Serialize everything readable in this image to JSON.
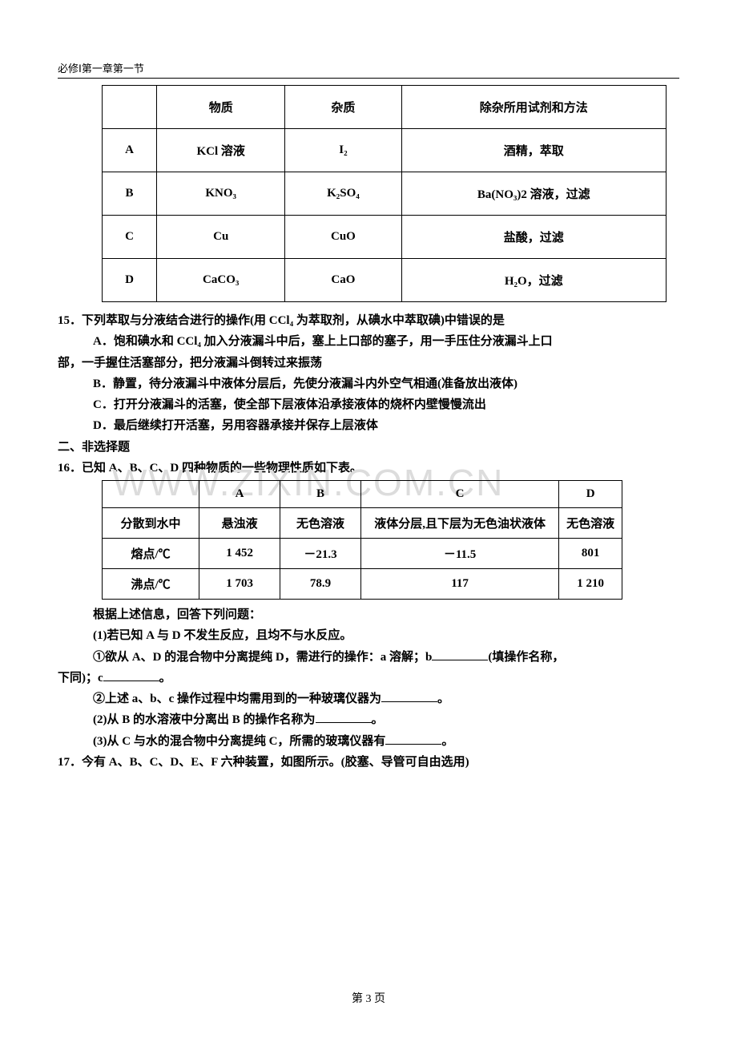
{
  "header": "必修Ⅰ第一章第一节",
  "table1": {
    "headers": [
      "",
      "物质",
      "杂质",
      "除杂所用试剂和方法"
    ],
    "rows": [
      [
        "A",
        "KCl 溶液",
        "I₂",
        "酒精，萃取"
      ],
      [
        "B",
        "KNO₃",
        "K₂SO₄",
        "Ba(NO₃)2 溶液，过滤"
      ],
      [
        "C",
        "Cu",
        "CuO",
        "盐酸，过滤"
      ],
      [
        "D",
        "CaCO₃",
        "CaO",
        "H₂O，过滤"
      ]
    ]
  },
  "q15": {
    "num": "15．",
    "stem": "下列萃取与分液结合进行的操作(用 CCl₄ 为萃取剂，从碘水中萃取碘)中错误的是",
    "optA": "A．饱和碘水和 CCl₄ 加入分液漏斗中后，塞上上口部的塞子，用一手压住分液漏斗上口",
    "optA2": "部，一手握住活塞部分，把分液漏斗倒转过来振荡",
    "optB": "B．静置，待分液漏斗中液体分层后，先使分液漏斗内外空气相通(准备放出液体)",
    "optC": "C．打开分液漏斗的活塞，使全部下层液体沿承接液体的烧杯内壁慢慢流出",
    "optD": "D．最后继续打开活塞，另用容器承接并保存上层液体"
  },
  "section2": "二、非选择题",
  "q16": {
    "num": "16．",
    "stem": "已知 A、B、C、D 四种物质的一些物理性质如下表。",
    "table": {
      "headers": [
        "",
        "A",
        "B",
        "C",
        "D"
      ],
      "row1": [
        "分散到水中",
        "悬浊液",
        "无色溶液",
        "液体分层,且下层为无色油状液体",
        "无色溶液"
      ],
      "row2": [
        "熔点/℃",
        "1 452",
        "－21.3",
        "－11.5",
        "801"
      ],
      "row3": [
        "沸点/℃",
        "1 703",
        "78.9",
        "117",
        "1 210"
      ]
    },
    "after": "根据上述信息，回答下列问题：",
    "p1a": "(1)若已知 A 与 D 不发生反应，且均不与水反应。",
    "p1b_a": "①欲从 A、D 的混合物中分离提纯 D，需进行的操作：a 溶解；b",
    "p1b_b": "(填操作名称，",
    "p1b2_a": "下同)；c",
    "p1b2_b": "。",
    "p1c_a": "②上述 a、b、c 操作过程中均需用到的一种玻璃仪器为",
    "p1c_b": "。",
    "p2_a": "(2)从 B 的水溶液中分离出 B 的操作名称为",
    "p2_b": "。",
    "p3_a": "(3)从 C 与水的混合物中分离提纯 C，所需的玻璃仪器有",
    "p3_b": "。"
  },
  "q17": {
    "num": "17．",
    "stem": "今有 A、B、C、D、E、F 六种装置，如图所示。(胶塞、导管可自由选用)"
  },
  "watermark": "WWW.ZIXIN.COM.CN",
  "pageNum": "第 3 页",
  "styles": {
    "page_bg": "#ffffff",
    "text_color": "#000000",
    "border_color": "#000000",
    "watermark_color": "#dcdcdc",
    "base_font_size": 15,
    "header_font_size": 13
  }
}
